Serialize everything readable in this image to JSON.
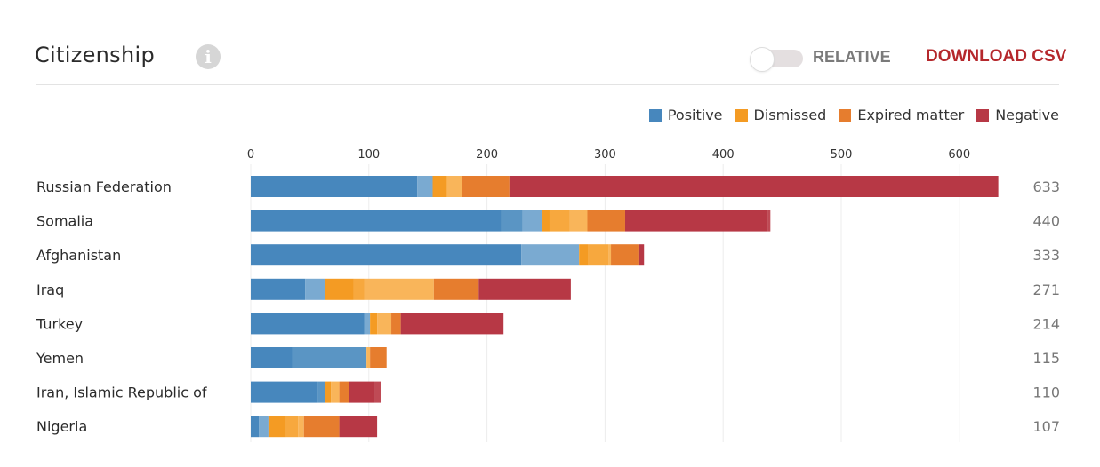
{
  "header": {
    "title": "Citizenship",
    "info_icon": "info-circle-icon",
    "toggle_label": "RELATIVE",
    "toggle_on": false,
    "download_label": "DOWNLOAD CSV"
  },
  "colors": {
    "positive": "#4787bd",
    "positive_mid": "#5a95c4",
    "positive_light": "#7aaad1",
    "dismissed": "#f49b23",
    "dismissed_mid": "#f7a83e",
    "dismissed_light": "#f9b55a",
    "expired": "#e67d2e",
    "negative": "#b73845",
    "negative_light": "#bf4a55",
    "download": "#b5282c"
  },
  "legend": [
    {
      "label": "Positive",
      "color": "#4787bd"
    },
    {
      "label": "Dismissed",
      "color": "#f49b23"
    },
    {
      "label": "Expired matter",
      "color": "#e67d2e"
    },
    {
      "label": "Negative",
      "color": "#b73845"
    }
  ],
  "chart_data": {
    "type": "bar",
    "orientation": "horizontal",
    "stacked": true,
    "title": "Citizenship",
    "xlim": [
      0,
      640
    ],
    "xticks": [
      0,
      100,
      200,
      300,
      400,
      500,
      600
    ],
    "grid": true,
    "legend_position": "top-right",
    "categories": [
      "Russian Federation",
      "Somalia",
      "Afghanistan",
      "Iraq",
      "Turkey",
      "Yemen",
      "Iran, Islamic Republic of",
      "Nigeria"
    ],
    "totals": [
      633,
      440,
      333,
      271,
      214,
      115,
      110,
      107
    ],
    "segments": [
      [
        {
          "group": "Positive",
          "shade": "positive",
          "value": 141
        },
        {
          "group": "Positive",
          "shade": "positive_light",
          "value": 13
        },
        {
          "group": "Dismissed",
          "shade": "dismissed",
          "value": 12
        },
        {
          "group": "Dismissed",
          "shade": "dismissed_light",
          "value": 13
        },
        {
          "group": "Expired matter",
          "shade": "expired",
          "value": 40
        },
        {
          "group": "Negative",
          "shade": "negative",
          "value": 414
        }
      ],
      [
        {
          "group": "Positive",
          "shade": "positive",
          "value": 212
        },
        {
          "group": "Positive",
          "shade": "positive_mid",
          "value": 18
        },
        {
          "group": "Positive",
          "shade": "positive_light",
          "value": 17
        },
        {
          "group": "Dismissed",
          "shade": "dismissed",
          "value": 6
        },
        {
          "group": "Dismissed",
          "shade": "dismissed_mid",
          "value": 17
        },
        {
          "group": "Dismissed",
          "shade": "dismissed_light",
          "value": 15
        },
        {
          "group": "Expired matter",
          "shade": "expired",
          "value": 32
        },
        {
          "group": "Negative",
          "shade": "negative",
          "value": 121
        },
        {
          "group": "Negative",
          "shade": "negative_light",
          "value": 2
        }
      ],
      [
        {
          "group": "Positive",
          "shade": "positive",
          "value": 229
        },
        {
          "group": "Positive",
          "shade": "positive_light",
          "value": 49
        },
        {
          "group": "Dismissed",
          "shade": "dismissed",
          "value": 8
        },
        {
          "group": "Dismissed",
          "shade": "dismissed_mid",
          "value": 17
        },
        {
          "group": "Dismissed",
          "shade": "dismissed_light",
          "value": 2
        },
        {
          "group": "Expired matter",
          "shade": "expired",
          "value": 24
        },
        {
          "group": "Negative",
          "shade": "negative",
          "value": 4
        }
      ],
      [
        {
          "group": "Positive",
          "shade": "positive",
          "value": 46
        },
        {
          "group": "Positive",
          "shade": "positive_light",
          "value": 17
        },
        {
          "group": "Dismissed",
          "shade": "dismissed",
          "value": 24
        },
        {
          "group": "Dismissed",
          "shade": "dismissed_mid",
          "value": 9
        },
        {
          "group": "Dismissed",
          "shade": "dismissed_light",
          "value": 59
        },
        {
          "group": "Expired matter",
          "shade": "expired",
          "value": 38
        },
        {
          "group": "Negative",
          "shade": "negative",
          "value": 78
        }
      ],
      [
        {
          "group": "Positive",
          "shade": "positive",
          "value": 96
        },
        {
          "group": "Positive",
          "shade": "positive_light",
          "value": 5
        },
        {
          "group": "Dismissed",
          "shade": "dismissed",
          "value": 6
        },
        {
          "group": "Dismissed",
          "shade": "dismissed_light",
          "value": 12
        },
        {
          "group": "Expired matter",
          "shade": "expired",
          "value": 8
        },
        {
          "group": "Negative",
          "shade": "negative",
          "value": 87
        }
      ],
      [
        {
          "group": "Positive",
          "shade": "positive",
          "value": 35
        },
        {
          "group": "Positive",
          "shade": "positive_mid",
          "value": 63
        },
        {
          "group": "Dismissed",
          "shade": "dismissed_light",
          "value": 3
        },
        {
          "group": "Expired matter",
          "shade": "expired",
          "value": 14
        }
      ],
      [
        {
          "group": "Positive",
          "shade": "positive",
          "value": 57
        },
        {
          "group": "Positive",
          "shade": "positive_mid",
          "value": 6
        },
        {
          "group": "Dismissed",
          "shade": "dismissed",
          "value": 5
        },
        {
          "group": "Dismissed",
          "shade": "dismissed_light",
          "value": 7
        },
        {
          "group": "Expired matter",
          "shade": "expired",
          "value": 8
        },
        {
          "group": "Negative",
          "shade": "negative",
          "value": 22
        },
        {
          "group": "Negative",
          "shade": "negative_light",
          "value": 5
        }
      ],
      [
        {
          "group": "Positive",
          "shade": "positive",
          "value": 7
        },
        {
          "group": "Positive",
          "shade": "positive_light",
          "value": 8
        },
        {
          "group": "Dismissed",
          "shade": "dismissed",
          "value": 15
        },
        {
          "group": "Dismissed",
          "shade": "dismissed_mid",
          "value": 10
        },
        {
          "group": "Dismissed",
          "shade": "dismissed_light",
          "value": 5
        },
        {
          "group": "Expired matter",
          "shade": "expired",
          "value": 30
        },
        {
          "group": "Negative",
          "shade": "negative",
          "value": 32
        }
      ]
    ]
  }
}
